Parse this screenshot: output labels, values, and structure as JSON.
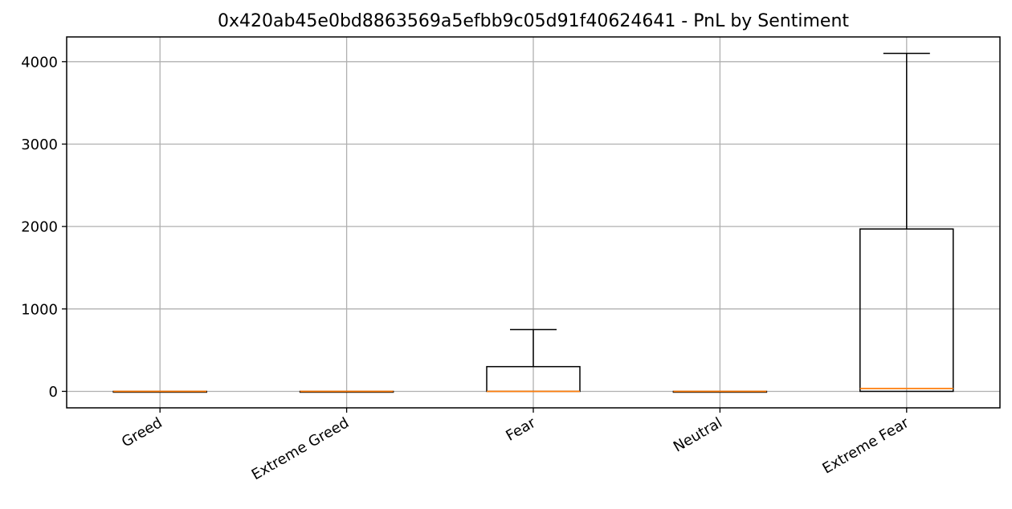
{
  "chart_data": {
    "type": "box",
    "title": "0x420ab45e0bd8863569a5efbb9c05d91f40624641 - PnL by Sentiment",
    "xlabel": "",
    "ylabel": "",
    "categories": [
      "Greed",
      "Extreme Greed",
      "Fear",
      "Neutral",
      "Extreme Fear"
    ],
    "boxes": [
      {
        "category": "Greed",
        "whisker_low": 0,
        "q1": 0,
        "median": 0,
        "q3": 0,
        "whisker_high": 0
      },
      {
        "category": "Extreme Greed",
        "whisker_low": 0,
        "q1": 0,
        "median": 0,
        "q3": 0,
        "whisker_high": 0
      },
      {
        "category": "Fear",
        "whisker_low": 0,
        "q1": 0,
        "median": 0,
        "q3": 300,
        "whisker_high": 750
      },
      {
        "category": "Neutral",
        "whisker_low": 0,
        "q1": 0,
        "median": 0,
        "q3": 0,
        "whisker_high": 0
      },
      {
        "category": "Extreme Fear",
        "whisker_low": 0,
        "q1": 0,
        "median": 35,
        "q3": 1970,
        "whisker_high": 4100
      }
    ],
    "yticks": [
      0,
      1000,
      2000,
      3000,
      4000
    ],
    "ylim": [
      -200,
      4300
    ],
    "grid": true,
    "box_color": "#000000",
    "median_color": "#ff7f0e",
    "grid_color": "#b0b0b0"
  }
}
